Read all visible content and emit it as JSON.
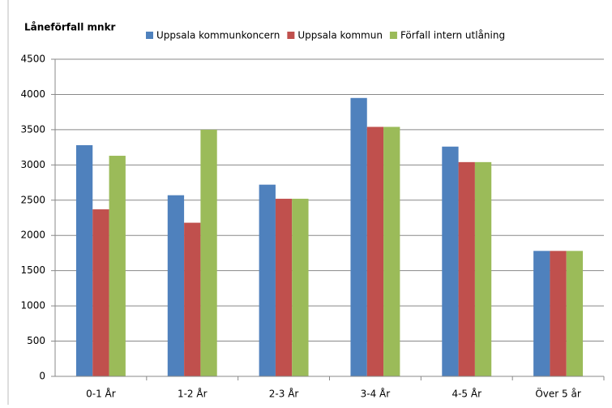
{
  "chart_data": {
    "type": "bar",
    "title": "Låneförfall mnkr",
    "categories": [
      "0-1 År",
      "1-2 År",
      "2-3 År",
      "3-4 År",
      "4-5 År",
      "Över 5 år"
    ],
    "series": [
      {
        "name": "Uppsala kommunkoncern",
        "color": "#4f81bd",
        "values": [
          3280,
          2570,
          2720,
          3950,
          3260,
          1780
        ]
      },
      {
        "name": "Uppsala kommun",
        "color": "#c0504d",
        "values": [
          2370,
          2180,
          2520,
          3540,
          3040,
          1780
        ]
      },
      {
        "name": "Förfall intern utlåning",
        "color": "#9bbb59",
        "values": [
          3130,
          3500,
          2520,
          3540,
          3040,
          1780
        ]
      }
    ],
    "ylim": [
      0,
      4500
    ],
    "yticks": [
      0,
      500,
      1000,
      1500,
      2000,
      2500,
      3000,
      3500,
      4000,
      4500
    ],
    "grid": true
  }
}
